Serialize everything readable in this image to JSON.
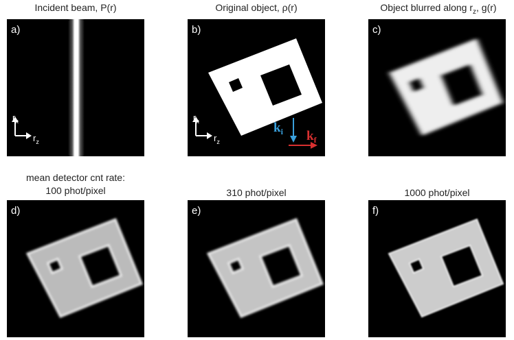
{
  "panels": [
    {
      "title": "Incident beam, P(r)",
      "label": "a)"
    },
    {
      "title": "Original object, ρ(r)",
      "label": "b)"
    },
    {
      "title_parts": [
        "Object blurred along r",
        "z",
        ", g(r)"
      ],
      "label": "c)"
    },
    {
      "title_lines": [
        "mean detector cnt rate:",
        "100 phot/pixel"
      ],
      "label": "d)"
    },
    {
      "title": "310 phot/pixel",
      "label": "e)"
    },
    {
      "title": "1000 phot/pixel",
      "label": "f)"
    }
  ],
  "axes": {
    "rx": [
      "r",
      "x"
    ],
    "rz": [
      "r",
      "z"
    ]
  },
  "vectors": {
    "ki": [
      "k",
      "i"
    ],
    "kf": [
      "k",
      "f"
    ]
  }
}
